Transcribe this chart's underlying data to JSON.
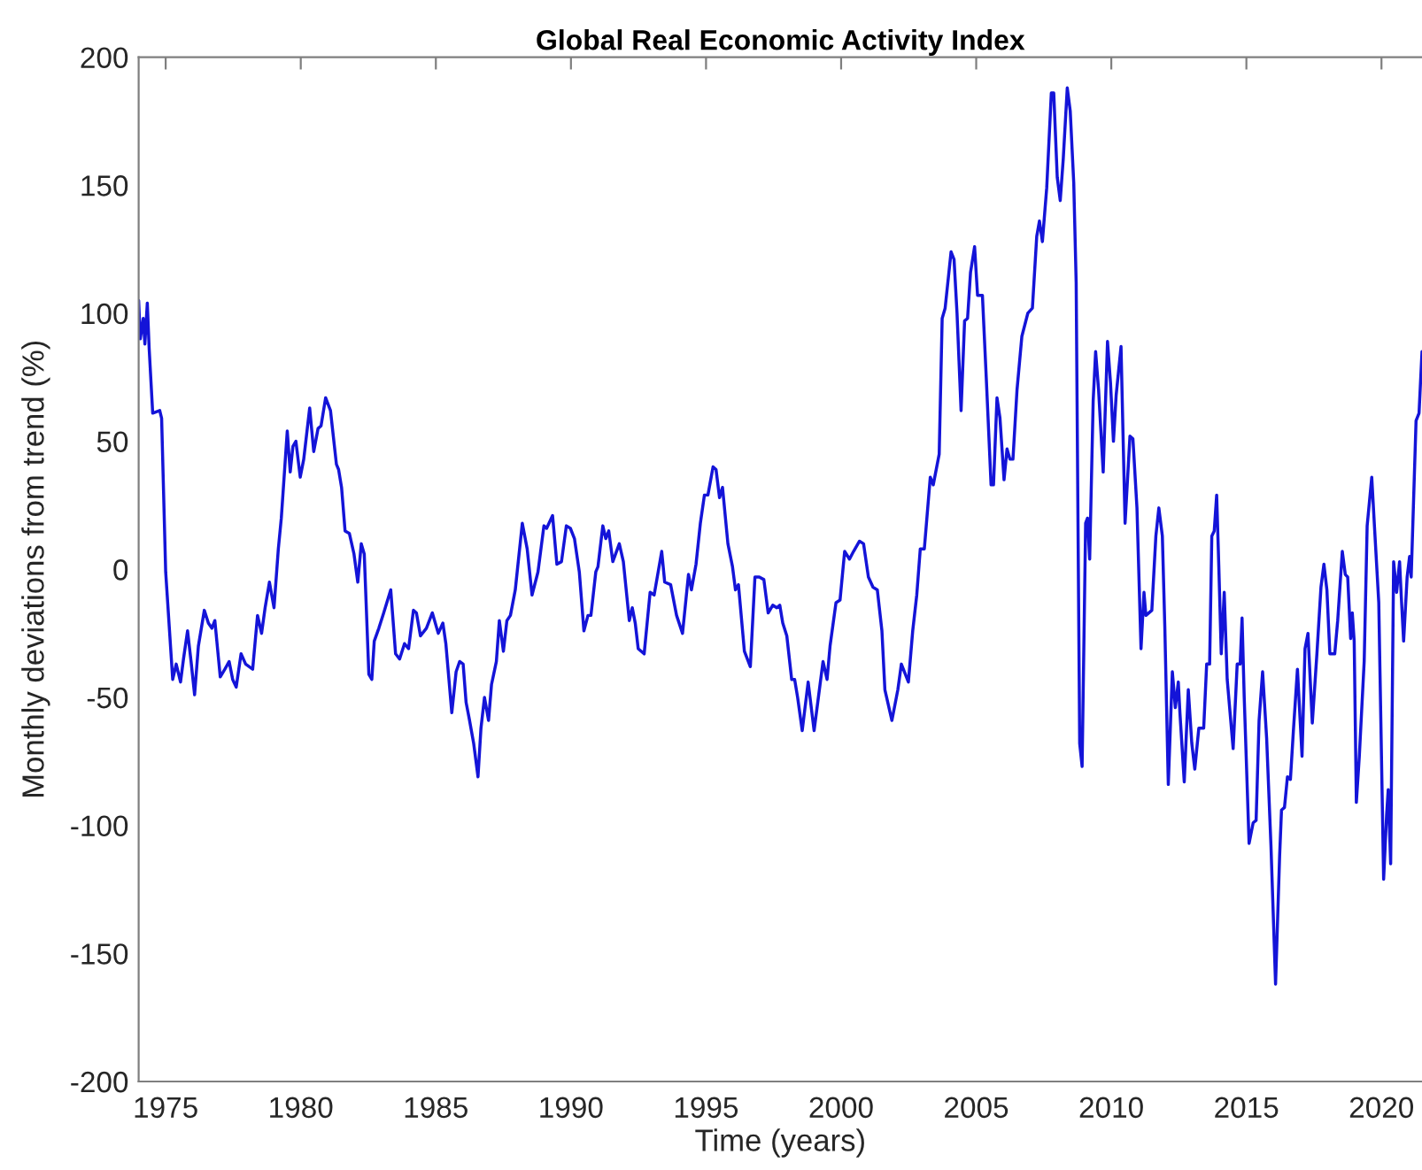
{
  "chart_data": {
    "type": "line",
    "title": "Global Real Economic Activity Index",
    "xlabel": "Time (years)",
    "ylabel": "Monthly deviations from trend (%)",
    "x": [
      1974.0,
      1974.06,
      1974.17,
      1974.23,
      1974.32,
      1974.39,
      1974.52,
      1974.78,
      1974.85,
      1975.0,
      1975.26,
      1975.39,
      1975.55,
      1975.66,
      1975.81,
      1975.94,
      1976.07,
      1976.21,
      1976.43,
      1976.58,
      1976.71,
      1976.82,
      1977.02,
      1977.19,
      1977.35,
      1977.48,
      1977.61,
      1977.79,
      1977.96,
      1978.22,
      1978.4,
      1978.55,
      1978.68,
      1978.84,
      1979.01,
      1979.17,
      1979.28,
      1979.5,
      1979.61,
      1979.71,
      1979.82,
      1979.98,
      1980.11,
      1980.33,
      1980.48,
      1980.64,
      1980.75,
      1980.92,
      1981.1,
      1981.32,
      1981.4,
      1981.51,
      1981.64,
      1981.8,
      1981.97,
      1982.11,
      1982.24,
      1982.35,
      1982.52,
      1982.63,
      1982.72,
      1982.89,
      1983.07,
      1983.33,
      1983.51,
      1983.66,
      1983.84,
      1983.99,
      1984.17,
      1984.28,
      1984.43,
      1984.65,
      1984.87,
      1985.09,
      1985.26,
      1985.37,
      1985.59,
      1985.75,
      1985.88,
      1986.01,
      1986.12,
      1986.23,
      1986.4,
      1986.56,
      1986.67,
      1986.8,
      1986.95,
      1987.06,
      1987.24,
      1987.35,
      1987.5,
      1987.63,
      1987.76,
      1987.94,
      1988.2,
      1988.38,
      1988.56,
      1988.78,
      1989.0,
      1989.1,
      1989.32,
      1989.48,
      1989.65,
      1989.83,
      1989.98,
      1990.13,
      1990.31,
      1990.48,
      1990.63,
      1990.74,
      1990.92,
      1991.0,
      1991.18,
      1991.29,
      1991.4,
      1991.55,
      1991.79,
      1991.94,
      1992.16,
      1992.27,
      1992.38,
      1992.49,
      1992.71,
      1992.93,
      1993.08,
      1993.36,
      1993.47,
      1993.69,
      1993.91,
      1994.13,
      1994.35,
      1994.46,
      1994.63,
      1994.79,
      1994.94,
      1995.07,
      1995.26,
      1995.37,
      1995.5,
      1995.61,
      1995.81,
      1995.98,
      1996.09,
      1996.2,
      1996.42,
      1996.64,
      1996.81,
      1996.97,
      1997.14,
      1997.3,
      1997.47,
      1997.62,
      1997.73,
      1997.84,
      1997.99,
      1998.17,
      1998.28,
      1998.39,
      1998.56,
      1998.78,
      1999.0,
      1999.22,
      1999.33,
      1999.48,
      1999.59,
      1999.81,
      1999.96,
      2000.13,
      2000.31,
      2000.46,
      2000.68,
      2000.83,
      2001.01,
      2001.18,
      2001.34,
      2001.51,
      2001.62,
      2001.88,
      2002.1,
      2002.23,
      2002.49,
      2002.65,
      2002.8,
      2002.93,
      2003.08,
      2003.3,
      2003.41,
      2003.63,
      2003.74,
      2003.85,
      2004.07,
      2004.18,
      2004.29,
      2004.44,
      2004.57,
      2004.68,
      2004.79,
      2004.94,
      2005.05,
      2005.23,
      2005.38,
      2005.55,
      2005.64,
      2005.77,
      2005.88,
      2006.03,
      2006.14,
      2006.25,
      2006.36,
      2006.51,
      2006.69,
      2006.91,
      2007.08,
      2007.24,
      2007.34,
      2007.45,
      2007.61,
      2007.78,
      2007.87,
      2008.0,
      2008.11,
      2008.22,
      2008.37,
      2008.48,
      2008.61,
      2008.7,
      2008.83,
      2008.92,
      2009.05,
      2009.12,
      2009.2,
      2009.33,
      2009.42,
      2009.53,
      2009.7,
      2009.86,
      2009.97,
      2010.08,
      2010.18,
      2010.36,
      2010.51,
      2010.69,
      2010.8,
      2010.95,
      2011.1,
      2011.21,
      2011.28,
      2011.5,
      2011.65,
      2011.76,
      2011.89,
      2011.98,
      2012.11,
      2012.26,
      2012.37,
      2012.48,
      2012.54,
      2012.7,
      2012.85,
      2012.98,
      2013.09,
      2013.24,
      2013.42,
      2013.53,
      2013.64,
      2013.72,
      2013.81,
      2013.9,
      2013.98,
      2014.07,
      2014.18,
      2014.29,
      2014.51,
      2014.66,
      2014.77,
      2014.84,
      2014.92,
      2015.1,
      2015.25,
      2015.36,
      2015.47,
      2015.6,
      2015.75,
      2015.91,
      2016.08,
      2016.23,
      2016.3,
      2016.41,
      2016.52,
      2016.63,
      2016.74,
      2016.89,
      2017.06,
      2017.17,
      2017.28,
      2017.44,
      2017.61,
      2017.76,
      2017.87,
      2017.98,
      2018.09,
      2018.27,
      2018.38,
      2018.55,
      2018.66,
      2018.75,
      2018.86,
      2018.92,
      2018.99,
      2019.07,
      2019.18,
      2019.36,
      2019.47,
      2019.64,
      2019.75,
      2019.9,
      2020.08,
      2020.19,
      2020.25,
      2020.34,
      2020.45,
      2020.56,
      2020.67,
      2020.73,
      2020.82,
      2020.95,
      2021.04,
      2021.1,
      2021.28,
      2021.39,
      2021.5
    ],
    "series": [
      {
        "color": "#1414d8",
        "values": [
          105,
          90,
          98,
          88,
          104,
          86,
          61,
          62,
          59,
          -1,
          -43,
          -37,
          -44,
          -35,
          -24,
          -36,
          -49,
          -30,
          -16,
          -21,
          -23,
          -20,
          -42,
          -39,
          -36,
          -43,
          -46,
          -33,
          -37,
          -39,
          -18,
          -25,
          -15,
          -5,
          -15,
          8,
          20,
          54,
          38,
          48,
          50,
          36,
          43,
          63,
          46,
          55,
          56,
          67,
          62,
          41,
          39,
          32,
          15,
          14,
          6,
          -5,
          10,
          6,
          -41,
          -43,
          -28,
          -23,
          -17,
          -8,
          -33,
          -35,
          -29,
          -31,
          -16,
          -17,
          -26,
          -23,
          -17,
          -25,
          -21,
          -29,
          -56,
          -40,
          -36,
          -37,
          -52,
          -58,
          -68,
          -81,
          -62,
          -50,
          -59,
          -45,
          -36,
          -20,
          -32,
          -20,
          -18,
          -8,
          18,
          8,
          -10,
          -1,
          17,
          16,
          21,
          2,
          3,
          17,
          16,
          12,
          -1,
          -24,
          -18,
          -18,
          -1,
          1,
          17,
          12,
          15,
          3,
          10,
          3,
          -20,
          -15,
          -21,
          -31,
          -33,
          -9,
          -10,
          7,
          -5,
          -6,
          -18,
          -25,
          -2,
          -8,
          2,
          18,
          29,
          29,
          40,
          39,
          28,
          32,
          10,
          1,
          -8,
          -6,
          -32,
          -38,
          -3,
          -3,
          -4,
          -17,
          -14,
          -15,
          -14,
          -21,
          -26,
          -43,
          -43,
          -50,
          -63,
          -44,
          -63,
          -45,
          -36,
          -43,
          -30,
          -13,
          -12,
          7,
          4,
          7,
          11,
          10,
          -3,
          -7,
          -8,
          -24,
          -47,
          -59,
          -47,
          -37,
          -44,
          -24,
          -10,
          8,
          8,
          36,
          33,
          45,
          98,
          102,
          124,
          121,
          100,
          62,
          97,
          98,
          116,
          126,
          107,
          107,
          73,
          33,
          33,
          67,
          59,
          35,
          47,
          43,
          43,
          70,
          91,
          100,
          102,
          130,
          136,
          128,
          149,
          186,
          186,
          153,
          144,
          160,
          188,
          179,
          151,
          112,
          -68,
          -77,
          18,
          20,
          4,
          66,
          85,
          70,
          38,
          89,
          73,
          50,
          68,
          87,
          18,
          52,
          51,
          24,
          -31,
          -9,
          -18,
          -16,
          13,
          24,
          13,
          -22,
          -84,
          -40,
          -54,
          -44,
          -56,
          -83,
          -47,
          -68,
          -78,
          -62,
          -62,
          -37,
          -37,
          13,
          15,
          29,
          1,
          -33,
          -9,
          -43,
          -70,
          -37,
          -37,
          -19,
          -50,
          -107,
          -99,
          -98,
          -59,
          -40,
          -66,
          -108,
          -162,
          -112,
          -94,
          -93,
          -81,
          -82,
          -63,
          -39,
          -73,
          -31,
          -25,
          -60,
          -33,
          -7,
          2,
          -8,
          -33,
          -33,
          -20,
          7,
          -2,
          -3,
          -27,
          -17,
          -28,
          -91,
          -73,
          -36,
          17,
          36,
          15,
          -13,
          -121,
          -96,
          -86,
          -115,
          3,
          -9,
          3,
          -10,
          -28,
          -3,
          5,
          -3,
          58,
          61,
          85
        ]
      }
    ],
    "xlim": [
      1974,
      2021.5
    ],
    "ylim": [
      -200,
      200
    ],
    "xticks": [
      1975,
      1980,
      1985,
      1990,
      1995,
      2000,
      2005,
      2010,
      2015,
      2020
    ],
    "yticks": [
      -200,
      -150,
      -100,
      -50,
      0,
      50,
      100,
      150,
      200
    ],
    "line_style": "solid"
  }
}
